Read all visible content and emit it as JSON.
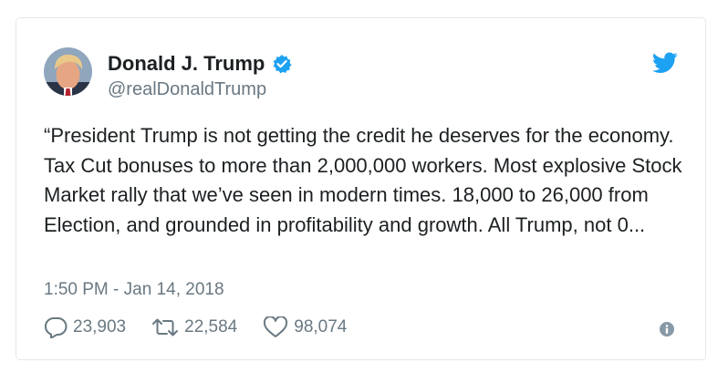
{
  "tweet": {
    "author": {
      "display_name": "Donald J. Trump",
      "handle": "@realDonaldTrump",
      "verified": true
    },
    "text": "“President Trump is not getting the credit he deserves for the economy. Tax Cut bonuses to more than 2,000,000 workers. Most explosive Stock Market rally that we’ve seen in modern times. 18,000 to 26,000 from Election, and grounded in profitability and growth. All Trump, not 0...",
    "timestamp": "1:50 PM - Jan 14, 2018",
    "stats": {
      "replies": "23,903",
      "retweets": "22,584",
      "likes": "98,074"
    }
  },
  "colors": {
    "brand": "#1da1f2",
    "text": "#1c2022",
    "secondary": "#697882",
    "border": "#e1e8ed"
  },
  "icons": {
    "verified": "verified-badge-icon",
    "brand": "twitter-bird-icon",
    "reply": "reply-bubble-icon",
    "retweet": "retweet-arrows-icon",
    "like": "heart-icon",
    "info": "info-icon"
  }
}
